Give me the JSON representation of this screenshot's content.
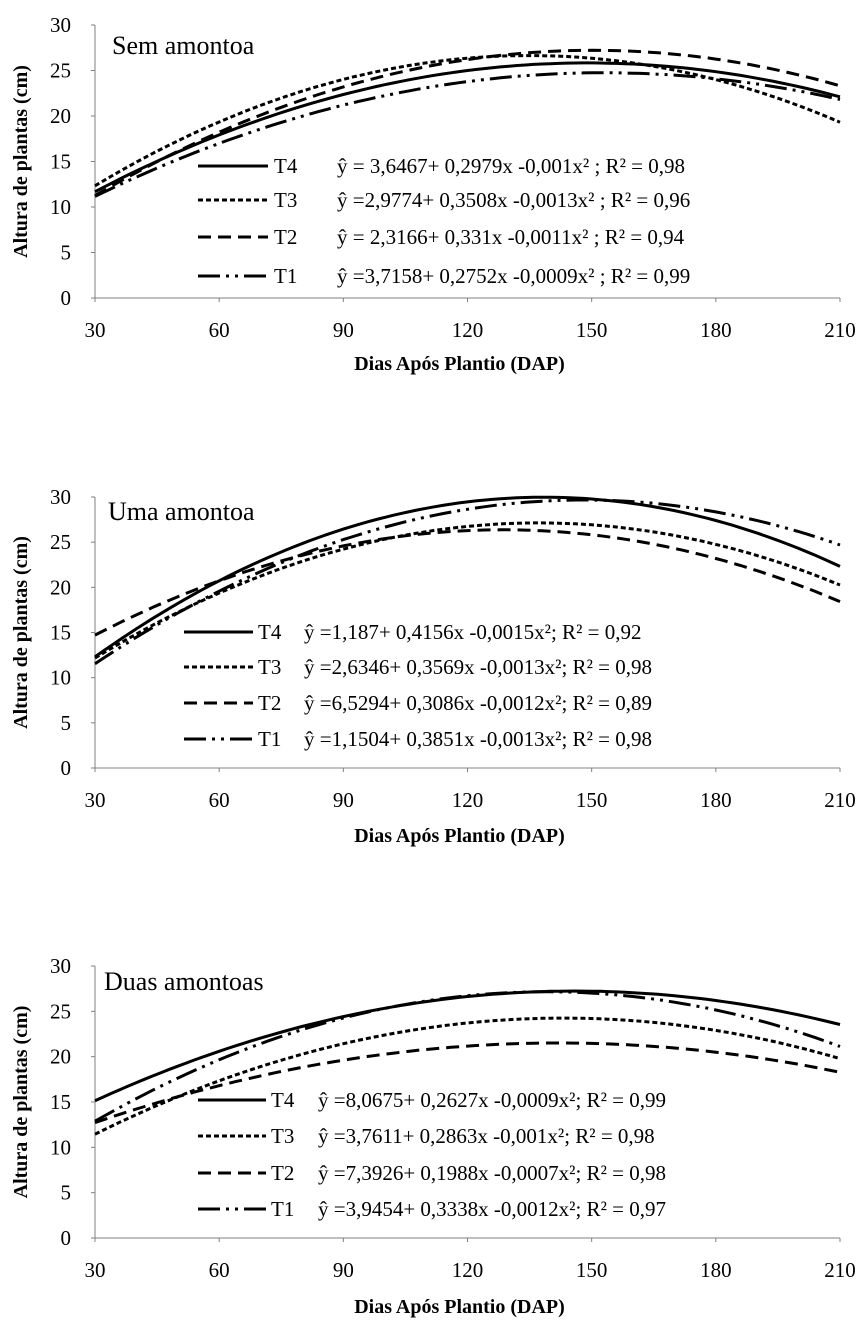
{
  "charts": [
    {
      "label": "Sem amontoa",
      "xlabel": "Dias Após Plantio (DAP)",
      "ylabel": "Altura de plantas (cm)",
      "legend": [
        {
          "series": "T4",
          "equation": "ŷ = 3,6467+ 0,2979x -0,001x² ; R² = 0,98"
        },
        {
          "series": "T3",
          "equation": "ŷ =2,9774+ 0,3508x -0,0013x² ; R² = 0,96"
        },
        {
          "series": "T2",
          "equation": "ŷ = 2,3166+ 0,331x -0,0011x² ; R² = 0,94"
        },
        {
          "series": "T1",
          "equation": "ŷ =3,7158+ 0,2752x -0,0009x² ; R² = 0,99"
        }
      ]
    },
    {
      "label": "Uma amontoa",
      "xlabel": "Dias Após Plantio (DAP)",
      "ylabel": "Altura de plantas (cm)",
      "legend": [
        {
          "series": "T4",
          "equation": "ŷ =1,187+ 0,4156x -0,0015x²;  R² = 0,92"
        },
        {
          "series": "T3",
          "equation": "ŷ =2,6346+ 0,3569x -0,0013x²; R² = 0,98"
        },
        {
          "series": "T2",
          "equation": "ŷ =6,5294+ 0,3086x -0,0012x²; R² = 0,89"
        },
        {
          "series": "T1",
          "equation": "ŷ =1,1504+ 0,3851x -0,0013x²; R² = 0,98"
        }
      ]
    },
    {
      "label": "Duas amontoas",
      "xlabel": "Dias Após Plantio (DAP)",
      "ylabel": "Altura de plantas  (cm)",
      "legend": [
        {
          "series": "T4",
          "equation": "ŷ =8,0675+ 0,2627x -0,0009x²; R² = 0,99"
        },
        {
          "series": "T3",
          "equation": "ŷ =3,7611+ 0,2863x -0,001x²; R² = 0,98"
        },
        {
          "series": "T2",
          "equation": "ŷ =7,3926+ 0,1988x -0,0007x²; R² = 0,98"
        },
        {
          "series": "T1",
          "equation": "ŷ =3,9454+ 0,3338x -0,0012x²; R² = 0,97"
        }
      ]
    }
  ],
  "chart_data": [
    {
      "type": "line",
      "title": "Sem amontoa",
      "xlabel": "Dias Após Plantio (DAP)",
      "ylabel": "Altura de plantas (cm)",
      "xlim": [
        30,
        210
      ],
      "ylim": [
        0,
        30
      ],
      "x_ticks": [
        30,
        60,
        90,
        120,
        150,
        180,
        210
      ],
      "y_ticks": [
        0,
        5,
        10,
        15,
        20,
        25,
        30
      ],
      "grid": false,
      "x": [
        30,
        45,
        60,
        75,
        90,
        105,
        120,
        135,
        150,
        165,
        180,
        195,
        210
      ],
      "series": [
        {
          "name": "T4",
          "style": "solid",
          "values": [
            11.7,
            15.0,
            18.1,
            20.6,
            22.8,
            24.5,
            25.7,
            26.3,
            26.4,
            26.0,
            25.2,
            23.8,
            22.1
          ],
          "coef": [
            3.6467,
            0.2979,
            -0.001
          ]
        },
        {
          "name": "T3",
          "style": "dotted",
          "values": [
            12.3,
            16.1,
            19.4,
            22.0,
            24.0,
            25.5,
            26.4,
            26.7,
            26.4,
            25.5,
            24.0,
            22.0,
            21.0
          ],
          "coef": [
            2.9774,
            0.3508,
            -0.0013
          ]
        },
        {
          "name": "T2",
          "style": "dashed",
          "values": [
            11.3,
            14.9,
            18.2,
            21.0,
            23.6,
            25.6,
            26.2,
            27.2,
            27.7,
            27.1,
            26.4,
            25.4,
            24.4
          ],
          "coef": [
            2.3166,
            0.331,
            -0.0011
          ]
        },
        {
          "name": "T1",
          "style": "dash-dot-dot",
          "values": [
            11.1,
            14.2,
            16.9,
            19.3,
            21.1,
            22.6,
            23.7,
            24.3,
            24.6,
            24.5,
            23.9,
            22.8,
            21.4
          ],
          "coef": [
            3.7158,
            0.2752,
            -0.0009
          ]
        }
      ]
    },
    {
      "type": "line",
      "title": "Uma amontoa",
      "xlabel": "Dias Após Plantio (DAP)",
      "ylabel": "Altura de plantas (cm)",
      "xlim": [
        30,
        210
      ],
      "ylim": [
        0,
        30
      ],
      "x_ticks": [
        30,
        60,
        90,
        120,
        150,
        180,
        210
      ],
      "y_ticks": [
        0,
        5,
        10,
        15,
        20,
        25,
        30
      ],
      "grid": false,
      "x": [
        30,
        45,
        60,
        75,
        90,
        105,
        120,
        135,
        150,
        165,
        180,
        195,
        210
      ],
      "series": [
        {
          "name": "T4",
          "style": "solid",
          "values": [
            12.3,
            16.8,
            20.0,
            23.9,
            26.4,
            28.2,
            29.3,
            29.8,
            29.7,
            28.9,
            27.4,
            25.3,
            22.3
          ],
          "coef": [
            1.187,
            0.4156,
            -0.0015
          ]
        },
        {
          "name": "T3",
          "style": "dotted",
          "values": [
            12.1,
            16.0,
            19.3,
            22.1,
            24.3,
            26.0,
            27.0,
            27.5,
            27.4,
            26.7,
            25.4,
            23.4,
            21.0
          ],
          "coef": [
            2.6346,
            0.3569,
            -0.0013
          ]
        },
        {
          "name": "T2",
          "style": "dashed",
          "values": [
            14.7,
            17.9,
            20.5,
            22.7,
            24.6,
            25.9,
            26.8,
            27.3,
            27.3,
            26.8,
            25.9,
            24.6,
            20.6
          ],
          "coef": [
            6.5294,
            0.3086,
            -0.0012
          ]
        },
        {
          "name": "T1",
          "style": "dash-dot-dot",
          "values": [
            11.5,
            15.8,
            19.6,
            22.7,
            25.2,
            27.0,
            28.1,
            28.5,
            28.7,
            28.3,
            27.3,
            25.6,
            22.6
          ],
          "coef": [
            1.1504,
            0.3851,
            -0.0013
          ]
        }
      ]
    },
    {
      "type": "line",
      "title": "Duas amontoas",
      "xlabel": "Dias Após Plantio (DAP)",
      "ylabel": "Altura de plantas  (cm)",
      "xlim": [
        30,
        210
      ],
      "ylim": [
        0,
        30
      ],
      "x_ticks": [
        30,
        60,
        90,
        120,
        150,
        180,
        210
      ],
      "y_ticks": [
        0,
        5,
        10,
        15,
        20,
        25,
        30
      ],
      "grid": false,
      "x": [
        30,
        45,
        60,
        75,
        90,
        105,
        120,
        135,
        150,
        165,
        180,
        195,
        210
      ],
      "series": [
        {
          "name": "T4",
          "style": "solid",
          "values": [
            15.1,
            17.9,
            20.6,
            22.8,
            24.4,
            25.7,
            26.5,
            26.7,
            26.5,
            25.8,
            24.6,
            23.1,
            22.1
          ],
          "coef": [
            8.0675,
            0.2627,
            -0.0009
          ]
        },
        {
          "name": "T3",
          "style": "dotted",
          "values": [
            11.5,
            14.6,
            17.3,
            19.6,
            21.4,
            23.0,
            24.0,
            24.6,
            24.7,
            24.3,
            23.4,
            22.1,
            20.8
          ],
          "coef": [
            3.7611,
            0.2863,
            -0.001
          ]
        },
        {
          "name": "T2",
          "style": "dashed",
          "values": [
            12.7,
            15.0,
            17.0,
            18.8,
            20.2,
            21.2,
            21.8,
            22.1,
            22.2,
            22.0,
            21.4,
            20.8,
            19.9
          ],
          "coef": [
            7.3926,
            0.1988,
            -0.0007
          ]
        },
        {
          "name": "T1",
          "style": "dash-dot-dot",
          "values": [
            12.9,
            16.5,
            19.6,
            22.3,
            24.3,
            25.9,
            26.8,
            27.3,
            27.3,
            26.7,
            25.6,
            24.0,
            22.2
          ],
          "coef": [
            3.9454,
            0.3338,
            -0.0012
          ]
        }
      ]
    }
  ]
}
